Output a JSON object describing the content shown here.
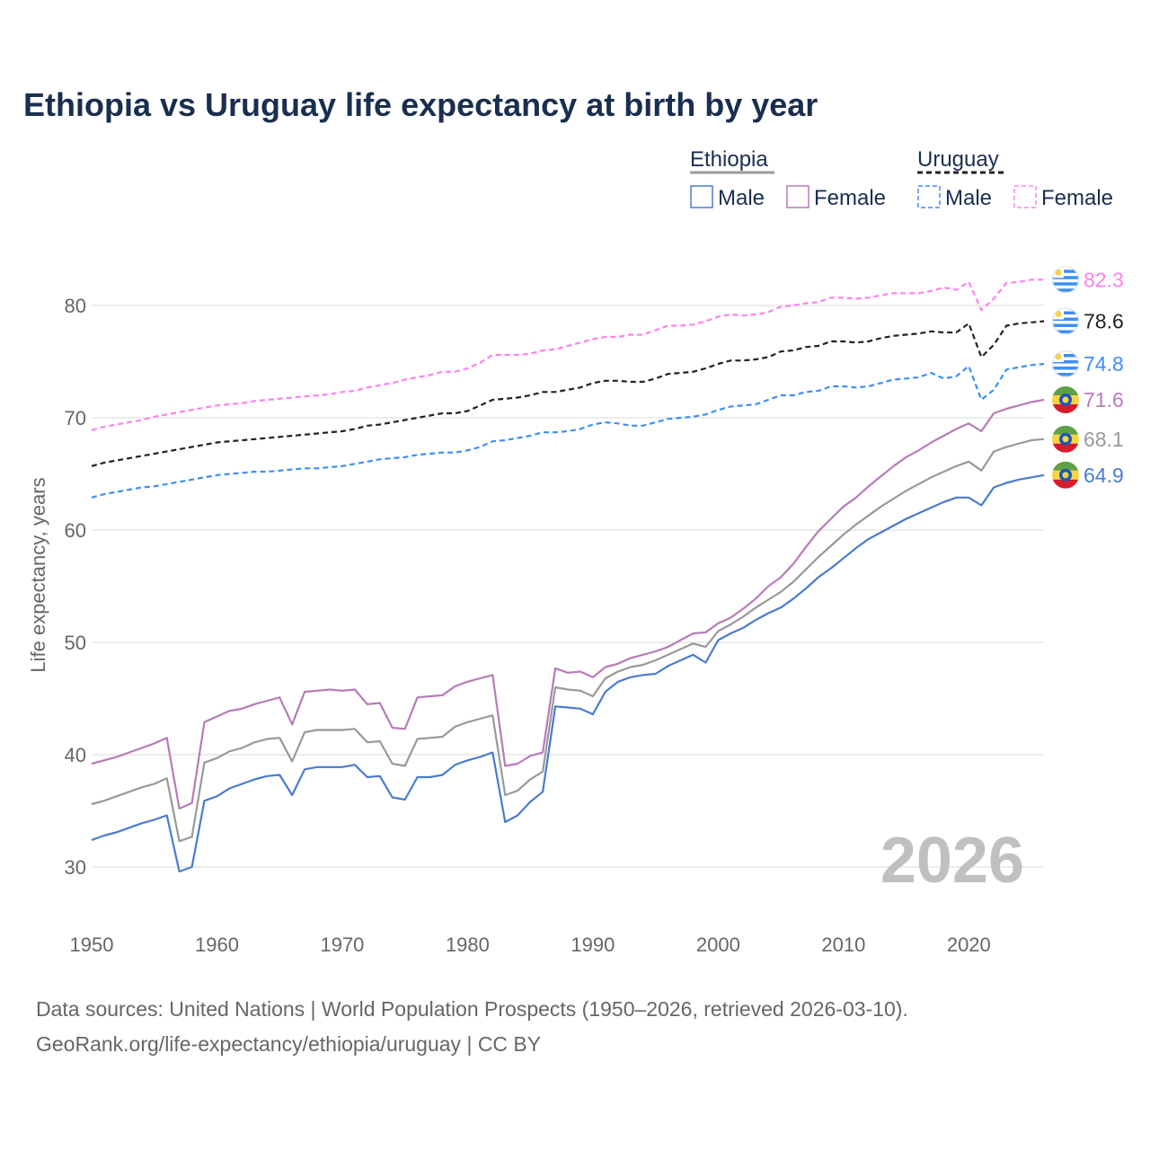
{
  "chart_data": {
    "type": "line",
    "title": "Ethiopia vs Uruguay life expectancy at birth by year",
    "xlabel": "",
    "ylabel": "Life expectancy, years",
    "xlim": [
      1950,
      2026
    ],
    "ylim": [
      25,
      86
    ],
    "yticks": [
      30,
      40,
      50,
      60,
      70,
      80
    ],
    "xticks": [
      1950,
      1960,
      1970,
      1980,
      1990,
      2000,
      2010,
      2020
    ],
    "year_watermark": "2026",
    "legend": {
      "placement": "top-right",
      "groups": [
        {
          "name": "Ethiopia",
          "items": [
            "Male",
            "Female"
          ]
        },
        {
          "name": "Uruguay",
          "items": [
            "Male",
            "Female"
          ]
        }
      ]
    },
    "x_start": 1950,
    "series": [
      {
        "id": "uru-female",
        "name": "Uruguay Female",
        "color": "#ff80f2",
        "dashed": true,
        "flag": "uruguay",
        "end_label": "82.3",
        "values": [
          68.9,
          69.2,
          69.4,
          69.6,
          69.8,
          70.1,
          70.3,
          70.5,
          70.7,
          70.9,
          71.1,
          71.2,
          71.3,
          71.5,
          71.6,
          71.7,
          71.8,
          71.9,
          72.0,
          72.1,
          72.3,
          72.4,
          72.7,
          72.9,
          73.1,
          73.4,
          73.6,
          73.8,
          74.1,
          74.1,
          74.4,
          74.9,
          75.6,
          75.6,
          75.6,
          75.7,
          76.0,
          76.1,
          76.4,
          76.7,
          77.0,
          77.2,
          77.2,
          77.4,
          77.4,
          77.8,
          78.2,
          78.2,
          78.3,
          78.6,
          79.0,
          79.2,
          79.1,
          79.2,
          79.4,
          79.9,
          80.0,
          80.2,
          80.3,
          80.7,
          80.7,
          80.6,
          80.7,
          80.9,
          81.1,
          81.1,
          81.1,
          81.3,
          81.6,
          81.4,
          82.1,
          79.6,
          80.6,
          82.0,
          82.1,
          82.3,
          82.3
        ]
      },
      {
        "id": "uru-both",
        "name": "Uruguay",
        "color": "#222222",
        "dashed": true,
        "flag": "uruguay",
        "end_label": "78.6",
        "values": [
          65.7,
          66.0,
          66.2,
          66.4,
          66.6,
          66.8,
          67.0,
          67.2,
          67.4,
          67.6,
          67.8,
          67.9,
          68.0,
          68.1,
          68.2,
          68.3,
          68.4,
          68.5,
          68.6,
          68.7,
          68.8,
          69.0,
          69.3,
          69.4,
          69.6,
          69.8,
          70.0,
          70.2,
          70.4,
          70.4,
          70.6,
          71.1,
          71.6,
          71.7,
          71.8,
          72.0,
          72.3,
          72.3,
          72.5,
          72.7,
          73.1,
          73.3,
          73.3,
          73.2,
          73.2,
          73.5,
          73.9,
          74.0,
          74.1,
          74.4,
          74.8,
          75.1,
          75.1,
          75.2,
          75.4,
          75.9,
          76.0,
          76.3,
          76.4,
          76.8,
          76.8,
          76.7,
          76.8,
          77.1,
          77.3,
          77.4,
          77.5,
          77.7,
          77.6,
          77.6,
          78.4,
          75.4,
          76.5,
          78.2,
          78.4,
          78.5,
          78.6
        ]
      },
      {
        "id": "uru-male",
        "name": "Uruguay Male",
        "color": "#3d8ef7",
        "dashed": true,
        "flag": "uruguay",
        "end_label": "74.8",
        "values": [
          62.9,
          63.2,
          63.4,
          63.6,
          63.8,
          63.9,
          64.1,
          64.3,
          64.5,
          64.7,
          64.9,
          65.0,
          65.1,
          65.2,
          65.2,
          65.3,
          65.4,
          65.5,
          65.5,
          65.6,
          65.7,
          65.9,
          66.1,
          66.3,
          66.4,
          66.5,
          66.7,
          66.8,
          66.9,
          66.9,
          67.1,
          67.4,
          67.9,
          68.0,
          68.2,
          68.4,
          68.7,
          68.7,
          68.8,
          69.0,
          69.4,
          69.6,
          69.5,
          69.3,
          69.3,
          69.6,
          69.9,
          70.0,
          70.1,
          70.3,
          70.7,
          71.0,
          71.1,
          71.2,
          71.6,
          72.0,
          72.0,
          72.3,
          72.4,
          72.8,
          72.8,
          72.7,
          72.8,
          73.1,
          73.4,
          73.5,
          73.6,
          74.0,
          73.5,
          73.7,
          74.6,
          71.6,
          72.5,
          74.3,
          74.5,
          74.7,
          74.8
        ]
      },
      {
        "id": "eth-female",
        "name": "Ethiopia Female",
        "color": "#b77bb8",
        "dashed": false,
        "flag": "ethiopia",
        "end_label": "71.6",
        "values": [
          39.2,
          39.5,
          39.8,
          40.2,
          40.6,
          41.0,
          41.5,
          35.2,
          35.7,
          42.9,
          43.4,
          43.9,
          44.1,
          44.5,
          44.8,
          45.1,
          42.7,
          45.6,
          45.7,
          45.8,
          45.7,
          45.8,
          44.5,
          44.6,
          42.4,
          42.3,
          45.1,
          45.2,
          45.3,
          46.1,
          46.5,
          46.8,
          47.1,
          39.0,
          39.2,
          39.9,
          40.2,
          47.7,
          47.3,
          47.4,
          46.9,
          47.8,
          48.1,
          48.6,
          48.9,
          49.2,
          49.6,
          50.2,
          50.8,
          50.9,
          51.7,
          52.2,
          53.0,
          53.9,
          55.0,
          55.8,
          57.0,
          58.5,
          59.9,
          61.0,
          62.1,
          62.9,
          63.9,
          64.8,
          65.7,
          66.5,
          67.1,
          67.8,
          68.4,
          69.0,
          69.5,
          68.8,
          70.4,
          70.8,
          71.1,
          71.4,
          71.6
        ]
      },
      {
        "id": "eth-both",
        "name": "Ethiopia",
        "color": "#999999",
        "dashed": false,
        "flag": "ethiopia",
        "end_label": "68.1",
        "values": [
          35.6,
          35.9,
          36.3,
          36.7,
          37.1,
          37.4,
          37.9,
          32.3,
          32.7,
          39.3,
          39.7,
          40.3,
          40.6,
          41.1,
          41.4,
          41.5,
          39.4,
          42.0,
          42.2,
          42.2,
          42.2,
          42.3,
          41.1,
          41.2,
          39.2,
          39.0,
          41.4,
          41.5,
          41.6,
          42.5,
          42.9,
          43.2,
          43.5,
          36.4,
          36.8,
          37.8,
          38.5,
          46.0,
          45.8,
          45.7,
          45.2,
          46.8,
          47.4,
          47.8,
          48.0,
          48.4,
          48.9,
          49.4,
          49.9,
          49.6,
          51.0,
          51.6,
          52.3,
          53.1,
          53.8,
          54.5,
          55.4,
          56.5,
          57.6,
          58.6,
          59.6,
          60.5,
          61.3,
          62.1,
          62.8,
          63.5,
          64.1,
          64.7,
          65.2,
          65.7,
          66.1,
          65.3,
          67.0,
          67.4,
          67.7,
          68.0,
          68.1
        ]
      },
      {
        "id": "eth-male",
        "name": "Ethiopia Male",
        "color": "#4a7bd0",
        "dashed": false,
        "flag": "ethiopia",
        "end_label": "64.9",
        "values": [
          32.4,
          32.8,
          33.1,
          33.5,
          33.9,
          34.2,
          34.6,
          29.6,
          30.0,
          35.9,
          36.3,
          37.0,
          37.4,
          37.8,
          38.1,
          38.2,
          36.4,
          38.7,
          38.9,
          38.9,
          38.9,
          39.1,
          38.0,
          38.1,
          36.2,
          36.0,
          38.0,
          38.0,
          38.2,
          39.1,
          39.5,
          39.8,
          40.2,
          34.0,
          34.6,
          35.8,
          36.7,
          44.3,
          44.2,
          44.1,
          43.6,
          45.6,
          46.5,
          46.9,
          47.1,
          47.2,
          47.9,
          48.4,
          48.9,
          48.2,
          50.2,
          50.8,
          51.3,
          52.0,
          52.6,
          53.1,
          53.9,
          54.8,
          55.8,
          56.6,
          57.5,
          58.4,
          59.2,
          59.8,
          60.4,
          61.0,
          61.5,
          62.0,
          62.5,
          62.9,
          62.9,
          62.2,
          63.8,
          64.2,
          64.5,
          64.7,
          64.9
        ]
      }
    ]
  },
  "footer": {
    "line1": "Data sources: United Nations | World Population Prospects (1950–2026, retrieved 2026-03-10).",
    "line2": "GeoRank.org/life-expectancy/ethiopia/uruguay | CC BY"
  }
}
